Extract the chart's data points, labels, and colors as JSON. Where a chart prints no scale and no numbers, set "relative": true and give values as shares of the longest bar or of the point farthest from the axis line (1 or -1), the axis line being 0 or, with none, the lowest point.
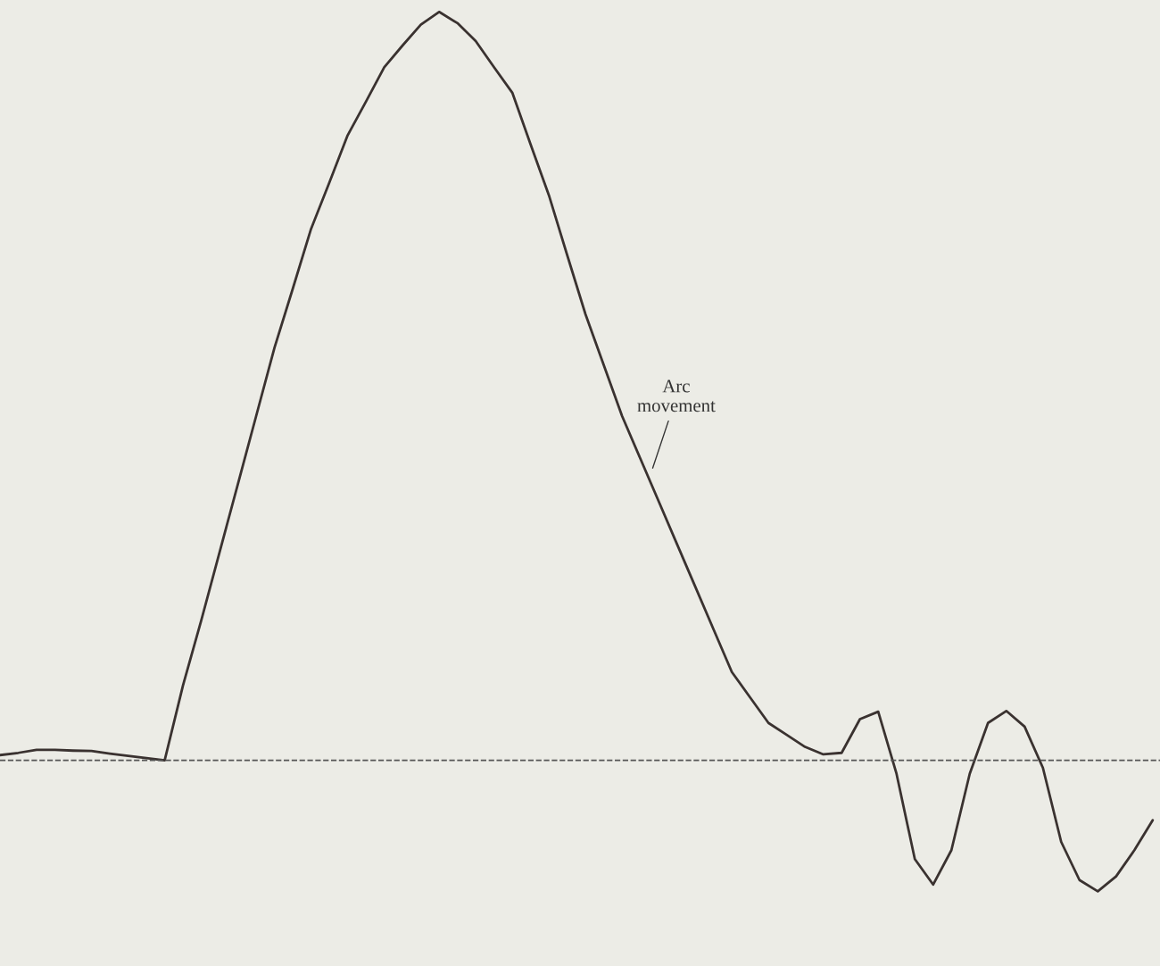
{
  "chart_data": {
    "type": "line",
    "relative": true,
    "line_style": "solid",
    "marker": "none",
    "legend": false,
    "tick_labels": false,
    "categories": [
      null,
      null,
      null,
      null,
      null,
      null,
      null,
      null,
      null,
      null,
      null,
      null,
      null,
      null,
      null,
      null,
      null,
      null,
      null,
      null,
      null,
      null,
      null,
      null,
      null,
      null,
      null,
      null,
      null,
      null,
      null,
      null,
      null,
      null,
      null,
      null,
      null,
      null,
      null,
      null,
      null,
      null,
      null,
      null,
      null,
      null,
      null,
      null,
      null,
      null,
      null,
      null,
      null,
      null,
      null,
      null,
      null,
      null,
      null,
      null,
      null,
      null,
      null,
      null
    ],
    "series": [
      {
        "color": "#3a3230",
        "values": [
          0.007,
          0.01,
          0.014,
          0.014,
          0.013,
          0.0125,
          0.009,
          0.006,
          0.003,
          0.0,
          0.1,
          0.187,
          0.278,
          0.369,
          0.46,
          0.551,
          0.63,
          0.71,
          0.772,
          0.835,
          0.88,
          0.926,
          0.955,
          0.983,
          1.0,
          0.985,
          0.961,
          0.926,
          0.892,
          0.823,
          0.755,
          0.675,
          0.596,
          0.528,
          0.46,
          0.403,
          0.346,
          0.289,
          0.232,
          0.175,
          0.118,
          0.084,
          0.05,
          0.034,
          0.018,
          0.008,
          0.01,
          0.055,
          0.065,
          -0.018,
          -0.132,
          -0.166,
          -0.12,
          -0.018,
          0.05,
          0.066,
          0.045,
          -0.01,
          -0.109,
          -0.16,
          -0.175,
          -0.155,
          -0.12,
          -0.08
        ]
      }
    ],
    "ref_lines": [
      {
        "axis": "y",
        "value": 0,
        "line_style": "dashed",
        "color": "#555555"
      }
    ],
    "annotations": [
      "Arc\nmovement"
    ]
  }
}
